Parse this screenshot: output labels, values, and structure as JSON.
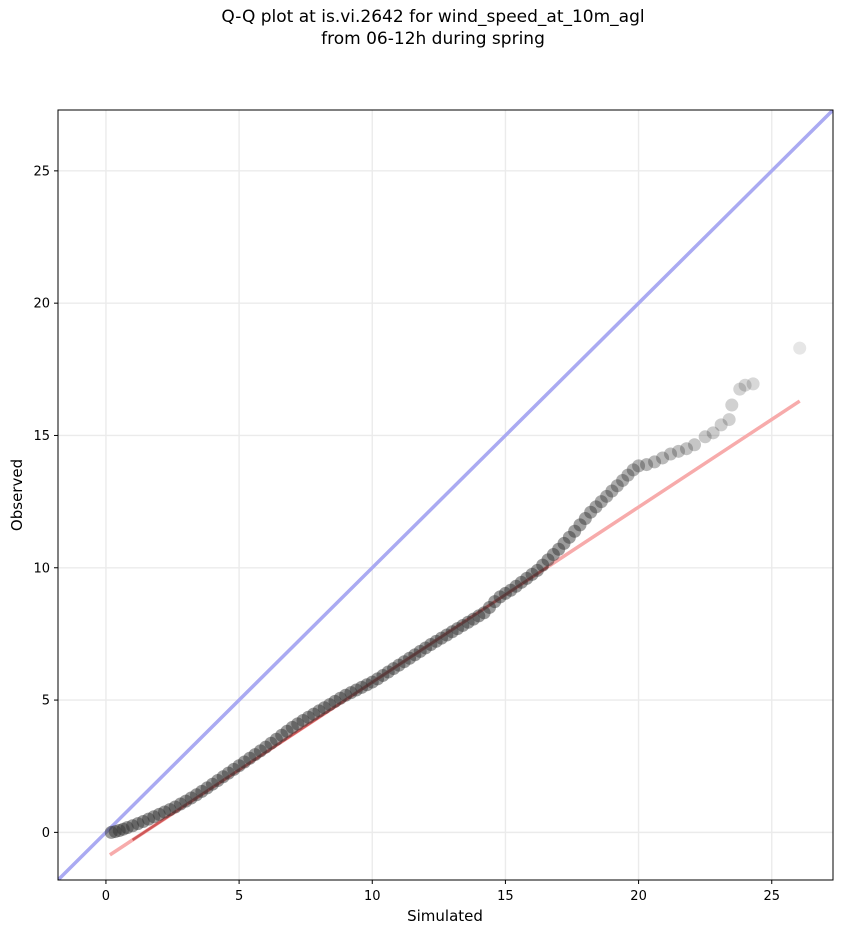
{
  "chart_data": {
    "type": "scatter",
    "title": [
      "Q-Q plot at is.vi.2642 for wind_speed_at_10m_agl",
      "from 06-12h during spring"
    ],
    "xlabel": "Simulated",
    "ylabel": "Observed",
    "xlim": [
      -1.8,
      27.3
    ],
    "ylim": [
      -1.8,
      27.3
    ],
    "xticks": [
      0,
      5,
      10,
      15,
      20,
      25
    ],
    "yticks": [
      0,
      5,
      10,
      15,
      20,
      25
    ],
    "grid": true,
    "colors": {
      "points": "#333333",
      "identity_line": "#aaaaf2",
      "fit_line": "#f7abab",
      "fit_segment": "#b22222",
      "grid": "#ebebeb"
    },
    "identity_line": {
      "x": [
        -1.8,
        27.3
      ],
      "y": [
        -1.8,
        27.3
      ]
    },
    "fit_line": {
      "x": [
        0.15,
        26.05
      ],
      "y": [
        -0.85,
        16.3
      ]
    },
    "series": [
      {
        "x": [
          0.2,
          0.35,
          0.5,
          0.65,
          0.8,
          1.0,
          1.2,
          1.4,
          1.6,
          1.8,
          2.0,
          2.2,
          2.4,
          2.6,
          2.8,
          3.0,
          3.2,
          3.4,
          3.6,
          3.8,
          4.0,
          4.2,
          4.4,
          4.6,
          4.8,
          5.0,
          5.2,
          5.4,
          5.6,
          5.8,
          6.0,
          6.2,
          6.4,
          6.6,
          6.8,
          7.0,
          7.2,
          7.4,
          7.6,
          7.8,
          8.0,
          8.2,
          8.4,
          8.6,
          8.8,
          9.0,
          9.2,
          9.4,
          9.6,
          9.8,
          10.0,
          10.2,
          10.4,
          10.6,
          10.8,
          11.0,
          11.2,
          11.4,
          11.6,
          11.8,
          12.0,
          12.2,
          12.4,
          12.6,
          12.8,
          13.0,
          13.2,
          13.4,
          13.6,
          13.8,
          14.0,
          14.2,
          14.4,
          14.6,
          14.8,
          15.0,
          15.2,
          15.4,
          15.6,
          15.8,
          16.0,
          16.2,
          16.4,
          16.6,
          16.8,
          17.0,
          17.2,
          17.4,
          17.6,
          17.8,
          18.0,
          18.2,
          18.4,
          18.6,
          18.8,
          19.0,
          19.2,
          19.4,
          19.6,
          19.8,
          20.0,
          20.3,
          20.6,
          20.9,
          21.2,
          21.5,
          21.8,
          22.1,
          22.5,
          22.8,
          23.1,
          23.4,
          23.5,
          23.8,
          24.0,
          24.3,
          26.05
        ],
        "y": [
          0.0,
          0.03,
          0.07,
          0.12,
          0.18,
          0.25,
          0.33,
          0.41,
          0.5,
          0.59,
          0.68,
          0.77,
          0.86,
          0.96,
          1.07,
          1.18,
          1.3,
          1.42,
          1.55,
          1.68,
          1.82,
          1.96,
          2.1,
          2.24,
          2.38,
          2.52,
          2.66,
          2.8,
          2.94,
          3.08,
          3.22,
          3.37,
          3.52,
          3.67,
          3.82,
          3.97,
          4.1,
          4.23,
          4.35,
          4.47,
          4.59,
          4.71,
          4.83,
          4.95,
          5.07,
          5.18,
          5.28,
          5.38,
          5.48,
          5.58,
          5.68,
          5.8,
          5.93,
          6.06,
          6.19,
          6.32,
          6.45,
          6.58,
          6.71,
          6.84,
          6.97,
          7.1,
          7.22,
          7.34,
          7.46,
          7.58,
          7.7,
          7.82,
          7.94,
          8.06,
          8.18,
          8.3,
          8.5,
          8.72,
          8.9,
          9.03,
          9.15,
          9.3,
          9.45,
          9.6,
          9.75,
          9.9,
          10.1,
          10.3,
          10.5,
          10.7,
          10.92,
          11.15,
          11.38,
          11.62,
          11.86,
          12.1,
          12.3,
          12.5,
          12.7,
          12.9,
          13.1,
          13.3,
          13.5,
          13.7,
          13.85,
          13.9,
          14.0,
          14.15,
          14.3,
          14.4,
          14.5,
          14.65,
          14.95,
          15.1,
          15.4,
          15.6,
          16.15,
          16.75,
          16.9,
          16.95,
          18.3
        ]
      }
    ]
  }
}
